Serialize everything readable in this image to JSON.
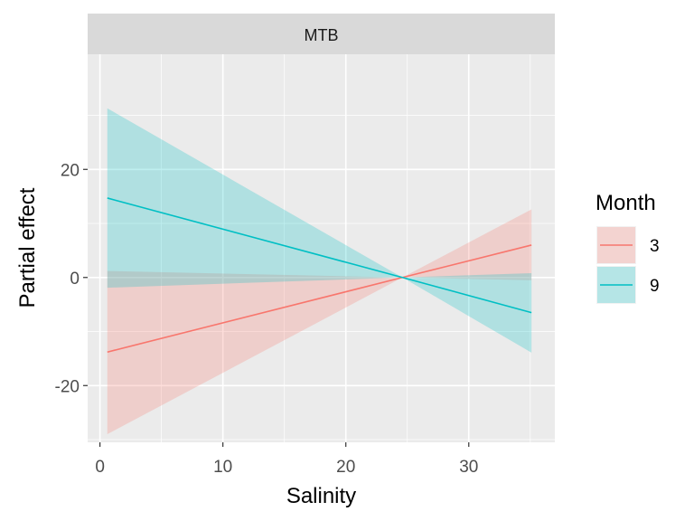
{
  "facet_label": "MTB",
  "chart_data": {
    "type": "line",
    "xlabel": "Salinity",
    "ylabel": "Partial effect",
    "xlim": [
      -1,
      37
    ],
    "ylim": [
      -30.5,
      41.3
    ],
    "x_ticks": [
      0,
      10,
      20,
      30
    ],
    "y_ticks": [
      -20,
      0,
      20
    ],
    "grid": true,
    "legend": {
      "title": "Month",
      "position": "right",
      "entries": [
        "3",
        "9"
      ]
    },
    "series": [
      {
        "name": "3",
        "color": "#F8766D",
        "fill": "#F8766D",
        "line": [
          [
            0.6,
            -13.8
          ],
          [
            24.6,
            0
          ],
          [
            35.1,
            6.0
          ]
        ],
        "ribbon_upper": [
          [
            0.6,
            1.2
          ],
          [
            24.6,
            0
          ],
          [
            35.1,
            12.6
          ]
        ],
        "ribbon_lower": [
          [
            0.6,
            -29.0
          ],
          [
            24.6,
            0
          ],
          [
            35.1,
            -0.5
          ]
        ]
      },
      {
        "name": "9",
        "color": "#00BFC4",
        "fill": "#00BFC4",
        "line": [
          [
            0.6,
            14.7
          ],
          [
            24.6,
            0
          ],
          [
            35.1,
            -6.5
          ]
        ],
        "ribbon_upper": [
          [
            0.6,
            31.3
          ],
          [
            24.6,
            0
          ],
          [
            35.1,
            0.8
          ]
        ],
        "ribbon_lower": [
          [
            0.6,
            -1.9
          ],
          [
            24.6,
            0
          ],
          [
            35.1,
            -13.9
          ]
        ]
      }
    ]
  }
}
